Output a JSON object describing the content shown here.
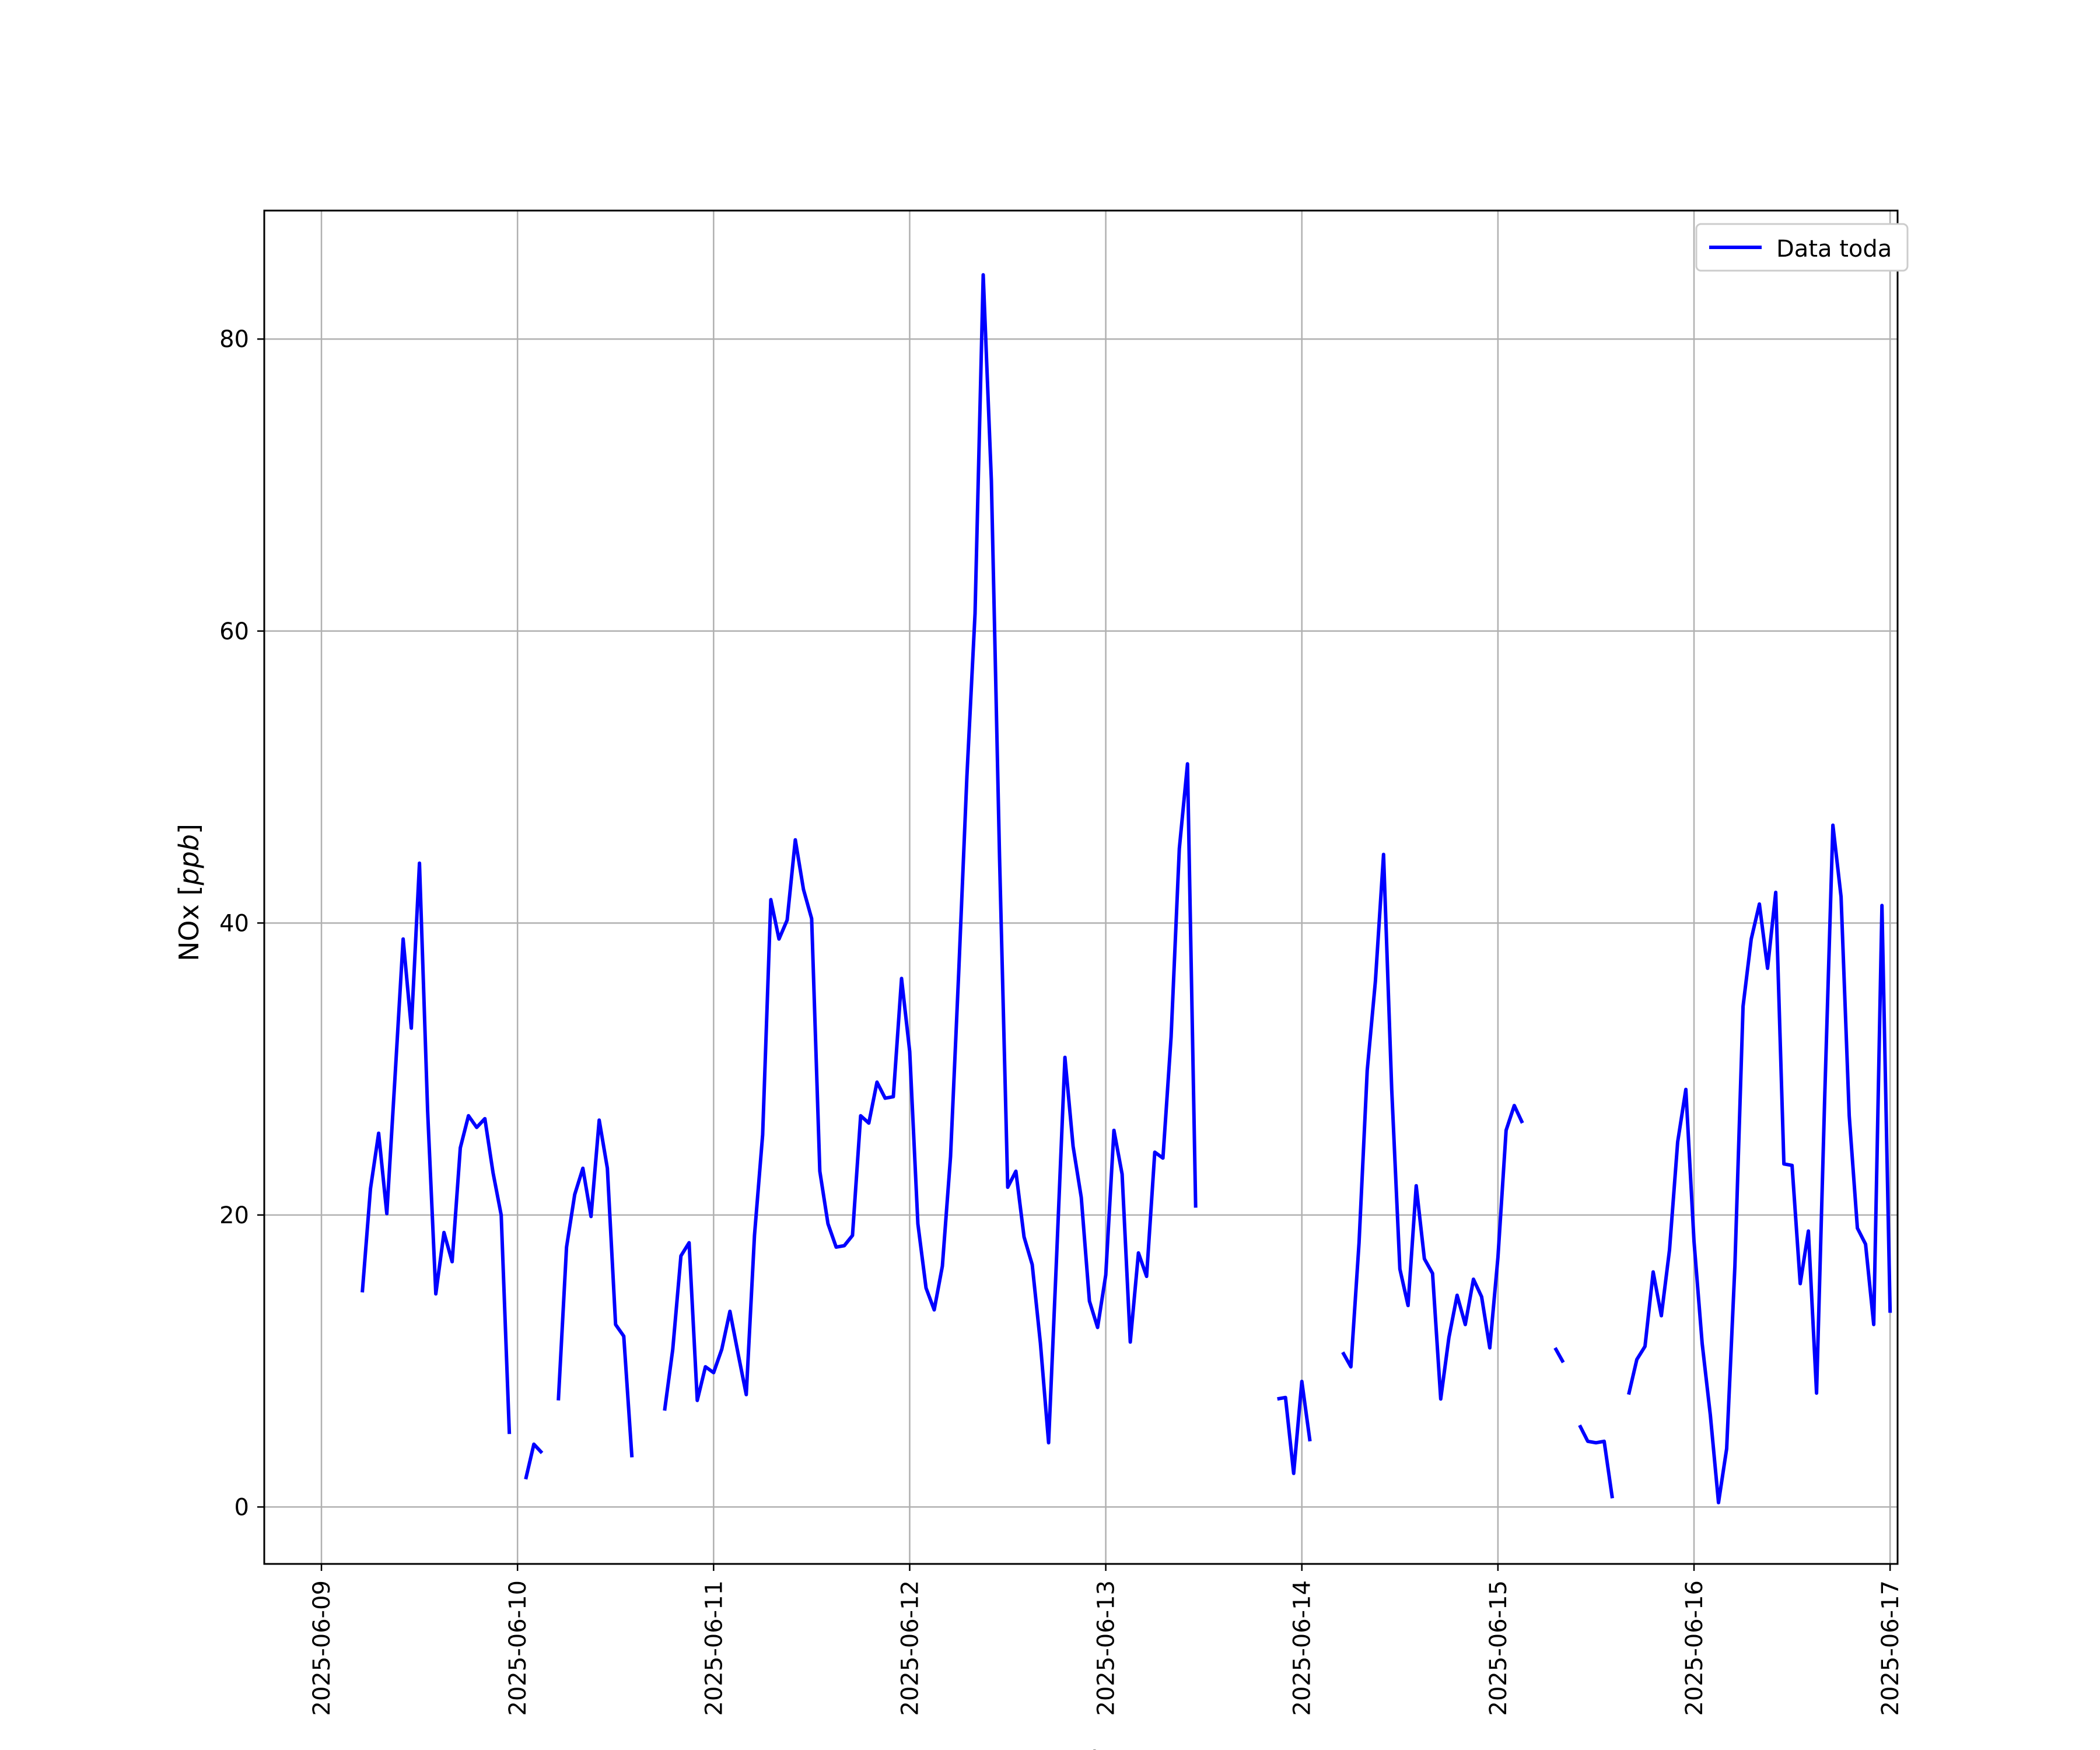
{
  "chart_data": {
    "type": "line",
    "title": "",
    "xlabel": "Fecha",
    "ylabel": "NOx [ppb]",
    "ylabel_parts": {
      "base": "NOx [",
      "unit": "ppb",
      "close": "]"
    },
    "x_ticks": [
      "2025-06-09",
      "2025-06-10",
      "2025-06-11",
      "2025-06-12",
      "2025-06-13",
      "2025-06-14",
      "2025-06-15",
      "2025-06-16",
      "2025-06-17"
    ],
    "y_ticks": [
      0,
      20,
      40,
      60,
      80
    ],
    "xlim": [
      "2025-06-08 17:00",
      "2025-06-17 00:55"
    ],
    "ylim": [
      -3.9,
      88.8
    ],
    "grid": true,
    "legend": {
      "position": "top-right",
      "entries": [
        "Data toda"
      ]
    },
    "series": [
      {
        "name": "Data toda",
        "color": "#0000ff",
        "segments": [
          [
            [
              "2025-06-09 05:00",
              14.7
            ],
            [
              "2025-06-09 06:00",
              21.8
            ],
            [
              "2025-06-09 07:00",
              25.6
            ],
            [
              "2025-06-09 08:00",
              20.1
            ],
            [
              "2025-06-09 09:00",
              29.4
            ],
            [
              "2025-06-09 10:00",
              38.9
            ],
            [
              "2025-06-09 11:00",
              32.8
            ],
            [
              "2025-06-09 12:00",
              44.1
            ],
            [
              "2025-06-09 13:00",
              27.1
            ],
            [
              "2025-06-09 14:00",
              14.6
            ],
            [
              "2025-06-09 15:00",
              18.8
            ],
            [
              "2025-06-09 16:00",
              16.8
            ],
            [
              "2025-06-09 17:00",
              24.6
            ],
            [
              "2025-06-09 18:00",
              26.8
            ],
            [
              "2025-06-09 19:00",
              26.0
            ],
            [
              "2025-06-09 20:00",
              26.6
            ],
            [
              "2025-06-09 21:00",
              22.9
            ],
            [
              "2025-06-09 22:00",
              20.0
            ],
            [
              "2025-06-09 23:00",
              5.0
            ]
          ],
          [
            [
              "2025-06-10 01:00",
              1.9
            ],
            [
              "2025-06-10 02:00",
              4.3
            ],
            [
              "2025-06-10 03:00",
              3.7
            ]
          ],
          [
            [
              "2025-06-10 05:00",
              7.3
            ],
            [
              "2025-06-10 06:00",
              17.8
            ],
            [
              "2025-06-10 07:00",
              21.4
            ],
            [
              "2025-06-10 08:00",
              23.2
            ],
            [
              "2025-06-10 09:00",
              19.9
            ],
            [
              "2025-06-10 10:00",
              26.5
            ],
            [
              "2025-06-10 11:00",
              23.2
            ],
            [
              "2025-06-10 12:00",
              12.5
            ],
            [
              "2025-06-10 13:00",
              11.7
            ],
            [
              "2025-06-10 14:00",
              3.4
            ]
          ],
          [
            [
              "2025-06-10 18:00",
              6.6
            ],
            [
              "2025-06-10 19:00",
              10.8
            ],
            [
              "2025-06-10 20:00",
              17.2
            ],
            [
              "2025-06-10 21:00",
              18.1
            ],
            [
              "2025-06-10 22:00",
              7.3
            ],
            [
              "2025-06-10 23:00",
              9.6
            ],
            [
              "2025-06-11 00:00",
              9.2
            ],
            [
              "2025-06-11 01:00",
              10.8
            ],
            [
              "2025-06-11 02:00",
              13.4
            ],
            [
              "2025-06-11 03:00",
              10.5
            ],
            [
              "2025-06-11 04:00",
              7.7
            ],
            [
              "2025-06-11 05:00",
              18.6
            ],
            [
              "2025-06-11 06:00",
              25.5
            ],
            [
              "2025-06-11 07:00",
              41.6
            ],
            [
              "2025-06-11 08:00",
              38.9
            ],
            [
              "2025-06-11 09:00",
              40.2
            ],
            [
              "2025-06-11 10:00",
              45.7
            ],
            [
              "2025-06-11 11:00",
              42.3
            ],
            [
              "2025-06-11 12:00",
              40.3
            ],
            [
              "2025-06-11 13:00",
              23.0
            ],
            [
              "2025-06-11 14:00",
              19.4
            ],
            [
              "2025-06-11 15:00",
              17.8
            ],
            [
              "2025-06-11 16:00",
              17.9
            ],
            [
              "2025-06-11 17:00",
              18.6
            ],
            [
              "2025-06-11 18:00",
              26.8
            ],
            [
              "2025-06-11 19:00",
              26.3
            ],
            [
              "2025-06-11 20:00",
              29.1
            ],
            [
              "2025-06-11 21:00",
              28.0
            ],
            [
              "2025-06-11 22:00",
              28.1
            ],
            [
              "2025-06-11 23:00",
              36.2
            ],
            [
              "2025-06-12 00:00",
              31.2
            ],
            [
              "2025-06-12 01:00",
              19.4
            ],
            [
              "2025-06-12 02:00",
              15.0
            ],
            [
              "2025-06-12 03:00",
              13.5
            ],
            [
              "2025-06-12 04:00",
              16.5
            ],
            [
              "2025-06-12 05:00",
              24.0
            ],
            [
              "2025-06-12 06:00",
              36.6
            ],
            [
              "2025-06-12 07:00",
              50.0
            ],
            [
              "2025-06-12 08:00",
              61.2
            ],
            [
              "2025-06-12 09:00",
              84.4
            ],
            [
              "2025-06-12 10:00",
              70.3
            ],
            [
              "2025-06-12 11:00",
              44.5
            ],
            [
              "2025-06-12 12:00",
              21.9
            ],
            [
              "2025-06-12 13:00",
              23.0
            ],
            [
              "2025-06-12 14:00",
              18.5
            ],
            [
              "2025-06-12 15:00",
              16.6
            ],
            [
              "2025-06-12 16:00",
              11.2
            ],
            [
              "2025-06-12 17:00",
              4.4
            ],
            [
              "2025-06-12 18:00",
              17.4
            ],
            [
              "2025-06-12 19:00",
              30.8
            ],
            [
              "2025-06-12 20:00",
              24.7
            ],
            [
              "2025-06-12 21:00",
              21.2
            ],
            [
              "2025-06-12 22:00",
              14.1
            ],
            [
              "2025-06-12 23:00",
              12.3
            ],
            [
              "2025-06-13 00:00",
              15.9
            ],
            [
              "2025-06-13 01:00",
              25.8
            ],
            [
              "2025-06-13 02:00",
              22.8
            ],
            [
              "2025-06-13 03:00",
              11.3
            ],
            [
              "2025-06-13 04:00",
              17.4
            ],
            [
              "2025-06-13 05:00",
              15.8
            ],
            [
              "2025-06-13 06:00",
              24.3
            ],
            [
              "2025-06-13 07:00",
              23.9
            ],
            [
              "2025-06-13 08:00",
              32.2
            ],
            [
              "2025-06-13 09:00",
              45.1
            ],
            [
              "2025-06-13 10:00",
              50.9
            ],
            [
              "2025-06-13 11:00",
              20.5
            ]
          ],
          [
            [
              "2025-06-13 21:00",
              7.4
            ],
            [
              "2025-06-13 22:00",
              7.5
            ],
            [
              "2025-06-13 23:00",
              2.3
            ],
            [
              "2025-06-14 00:00",
              8.6
            ],
            [
              "2025-06-14 01:00",
              4.5
            ]
          ],
          [
            [
              "2025-06-14 05:00",
              10.6
            ],
            [
              "2025-06-14 06:00",
              9.6
            ],
            [
              "2025-06-14 07:00",
              18.1
            ],
            [
              "2025-06-14 08:00",
              29.9
            ],
            [
              "2025-06-14 09:00",
              36.0
            ],
            [
              "2025-06-14 10:00",
              44.7
            ],
            [
              "2025-06-14 11:00",
              28.6
            ],
            [
              "2025-06-14 12:00",
              16.3
            ],
            [
              "2025-06-14 13:00",
              13.8
            ],
            [
              "2025-06-14 14:00",
              22.0
            ],
            [
              "2025-06-14 15:00",
              17.0
            ],
            [
              "2025-06-14 16:00",
              16.0
            ],
            [
              "2025-06-14 17:00",
              7.4
            ],
            [
              "2025-06-14 18:00",
              11.6
            ],
            [
              "2025-06-14 19:00",
              14.5
            ],
            [
              "2025-06-14 20:00",
              12.5
            ],
            [
              "2025-06-14 21:00",
              15.6
            ],
            [
              "2025-06-14 22:00",
              14.4
            ],
            [
              "2025-06-14 23:00",
              10.9
            ],
            [
              "2025-06-15 00:00",
              17.1
            ],
            [
              "2025-06-15 01:00",
              25.8
            ],
            [
              "2025-06-15 02:00",
              27.5
            ],
            [
              "2025-06-15 03:00",
              26.3
            ]
          ],
          [
            [
              "2025-06-15 07:00",
              10.9
            ],
            [
              "2025-06-15 08:00",
              9.9
            ]
          ],
          [
            [
              "2025-06-15 10:00",
              5.6
            ],
            [
              "2025-06-15 11:00",
              4.5
            ],
            [
              "2025-06-15 12:00",
              4.4
            ],
            [
              "2025-06-15 13:00",
              4.5
            ],
            [
              "2025-06-15 14:00",
              0.6
            ]
          ],
          [
            [
              "2025-06-15 16:00",
              7.7
            ],
            [
              "2025-06-15 17:00",
              10.1
            ],
            [
              "2025-06-15 18:00",
              11.0
            ],
            [
              "2025-06-15 19:00",
              16.1
            ],
            [
              "2025-06-15 20:00",
              13.1
            ],
            [
              "2025-06-15 21:00",
              17.6
            ],
            [
              "2025-06-15 22:00",
              25.0
            ],
            [
              "2025-06-15 23:00",
              28.6
            ],
            [
              "2025-06-16 00:00",
              18.2
            ],
            [
              "2025-06-16 01:00",
              11.2
            ],
            [
              "2025-06-16 02:00",
              6.3
            ],
            [
              "2025-06-16 03:00",
              0.3
            ],
            [
              "2025-06-16 04:00",
              4.0
            ],
            [
              "2025-06-16 05:00",
              16.5
            ],
            [
              "2025-06-16 06:00",
              34.3
            ],
            [
              "2025-06-16 07:00",
              38.9
            ],
            [
              "2025-06-16 08:00",
              41.3
            ],
            [
              "2025-06-16 09:00",
              36.9
            ],
            [
              "2025-06-16 10:00",
              42.1
            ],
            [
              "2025-06-16 11:00",
              23.5
            ],
            [
              "2025-06-16 12:00",
              23.4
            ],
            [
              "2025-06-16 13:00",
              15.3
            ],
            [
              "2025-06-16 14:00",
              18.9
            ],
            [
              "2025-06-16 15:00",
              7.8
            ],
            [
              "2025-06-16 16:00",
              28.1
            ],
            [
              "2025-06-16 17:00",
              46.7
            ],
            [
              "2025-06-16 18:00",
              41.8
            ],
            [
              "2025-06-16 19:00",
              26.8
            ],
            [
              "2025-06-16 20:00",
              19.1
            ],
            [
              "2025-06-16 21:00",
              18.0
            ],
            [
              "2025-06-16 22:00",
              12.5
            ],
            [
              "2025-06-16 23:00",
              41.2
            ],
            [
              "2025-06-17 00:00",
              13.3
            ]
          ]
        ]
      }
    ]
  }
}
